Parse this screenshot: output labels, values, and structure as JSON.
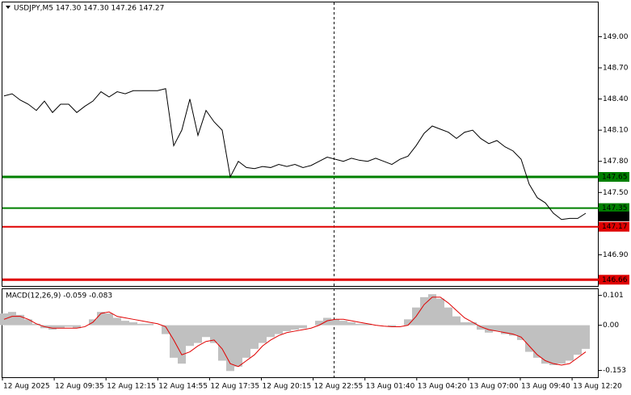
{
  "chart_data": [
    {
      "type": "line",
      "title": "USDJPY,M5  147.30 147.30 147.26 147.27",
      "color": "#000000",
      "values": [
        148.43,
        148.45,
        148.39,
        148.35,
        148.29,
        148.38,
        148.27,
        148.35,
        148.35,
        148.27,
        148.33,
        148.38,
        148.47,
        148.42,
        148.47,
        148.45,
        148.48,
        148.48,
        148.48,
        148.48,
        148.5,
        147.95,
        148.1,
        148.4,
        148.05,
        148.29,
        148.18,
        148.1,
        147.65,
        147.8,
        147.74,
        147.73,
        147.75,
        147.74,
        147.77,
        147.75,
        147.77,
        147.74,
        147.76,
        147.8,
        147.84,
        147.82,
        147.8,
        147.83,
        147.81,
        147.8,
        147.83,
        147.8,
        147.77,
        147.82,
        147.85,
        147.95,
        148.07,
        148.14,
        148.11,
        148.08,
        148.02,
        148.08,
        148.1,
        148.02,
        147.97,
        148.0,
        147.94,
        147.9,
        147.82,
        147.58,
        147.45,
        147.4,
        147.3,
        147.24,
        147.25,
        147.25,
        147.3
      ],
      "ylim": [
        146.6,
        149.33
      ],
      "yticks": [
        {
          "value": 149.0,
          "label": "149.00"
        },
        {
          "value": 148.7,
          "label": "148.70"
        },
        {
          "value": 148.4,
          "label": "148.40"
        },
        {
          "value": 148.1,
          "label": "148.10"
        },
        {
          "value": 147.8,
          "label": "147.80"
        },
        {
          "value": 147.5,
          "label": "147.50"
        },
        {
          "value": 146.9,
          "label": "146.90"
        }
      ],
      "levels": [
        {
          "value": 147.65,
          "label": "147.65",
          "color": "#008000",
          "width": 3
        },
        {
          "value": 147.35,
          "label": "147.35",
          "color": "#008000",
          "width": 2
        },
        {
          "value": 147.17,
          "label": "147.17",
          "color": "#e00000",
          "width": 2
        },
        {
          "value": 146.66,
          "label": "146.66",
          "color": "#e00000",
          "width": 3
        }
      ],
      "current_price": {
        "value": 147.27,
        "label": "147.27",
        "color": "#000000"
      }
    },
    {
      "type": "macd",
      "title": "MACD(12,26,9) -0.059 -0.083",
      "histogram": {
        "color": "#c0c0c0",
        "values": [
          0.04,
          0.045,
          0.035,
          0.02,
          0.005,
          -0.01,
          -0.015,
          -0.01,
          -0.005,
          -0.01,
          0.0,
          0.02,
          0.045,
          0.04,
          0.025,
          0.015,
          0.01,
          0.005,
          0.005,
          0.0,
          -0.03,
          -0.11,
          -0.13,
          -0.07,
          -0.06,
          -0.04,
          -0.06,
          -0.12,
          -0.155,
          -0.14,
          -0.11,
          -0.08,
          -0.06,
          -0.04,
          -0.03,
          -0.02,
          -0.015,
          -0.01,
          0.0,
          0.015,
          0.025,
          0.02,
          0.015,
          0.01,
          0.005,
          0.005,
          0.0,
          0.0,
          -0.005,
          0.0,
          0.02,
          0.06,
          0.095,
          0.105,
          0.09,
          0.06,
          0.03,
          0.01,
          0.01,
          -0.015,
          -0.025,
          -0.02,
          -0.03,
          -0.035,
          -0.05,
          -0.09,
          -0.11,
          -0.13,
          -0.135,
          -0.13,
          -0.12,
          -0.1,
          -0.08
        ]
      },
      "signal": {
        "color": "#e00000",
        "values": [
          0.02,
          0.03,
          0.03,
          0.02,
          0.005,
          -0.005,
          -0.01,
          -0.01,
          -0.01,
          -0.01,
          -0.005,
          0.01,
          0.04,
          0.045,
          0.03,
          0.025,
          0.02,
          0.015,
          0.01,
          0.005,
          -0.005,
          -0.05,
          -0.1,
          -0.09,
          -0.07,
          -0.055,
          -0.05,
          -0.08,
          -0.13,
          -0.14,
          -0.12,
          -0.1,
          -0.07,
          -0.05,
          -0.035,
          -0.025,
          -0.02,
          -0.015,
          -0.01,
          0.0,
          0.015,
          0.02,
          0.02,
          0.015,
          0.01,
          0.005,
          0.0,
          -0.003,
          -0.005,
          -0.005,
          0.0,
          0.03,
          0.07,
          0.095,
          0.095,
          0.075,
          0.05,
          0.025,
          0.01,
          -0.005,
          -0.015,
          -0.02,
          -0.025,
          -0.03,
          -0.04,
          -0.07,
          -0.1,
          -0.12,
          -0.13,
          -0.135,
          -0.13,
          -0.11,
          -0.09
        ]
      },
      "ylim": [
        -0.176,
        0.122
      ],
      "yticks": [
        0.101,
        {
          "value": 0,
          "label": "0.00"
        },
        -0.153
      ]
    }
  ],
  "time_axis": {
    "labels": [
      "12 Aug 2025",
      "12 Aug 09:35",
      "12 Aug 12:15",
      "12 Aug 14:55",
      "12 Aug 17:35",
      "12 Aug 20:15",
      "12 Aug 22:55",
      "13 Aug 01:40",
      "13 Aug 04:20",
      "13 Aug 07:00",
      "13 Aug 09:40",
      "13 Aug 12:20"
    ]
  }
}
